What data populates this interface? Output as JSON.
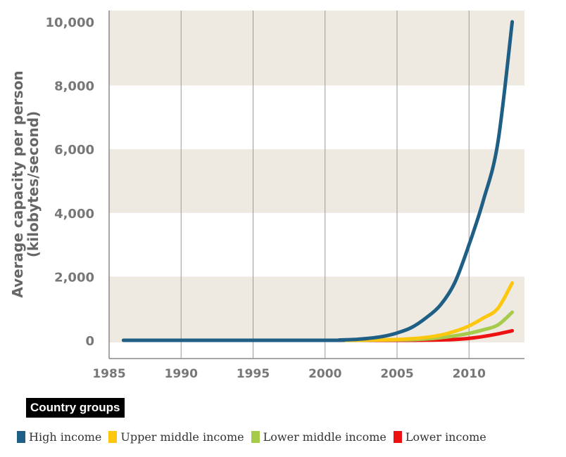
{
  "chart_data": {
    "type": "line",
    "ylabel": "Average capacity per person\n(kilobytes/second)",
    "xlim": [
      1985,
      2014
    ],
    "ylim": [
      0,
      10000
    ],
    "xticks": [
      1985,
      1990,
      1995,
      2000,
      2005,
      2010
    ],
    "xtick_labels": [
      "1985",
      "1990",
      "1995",
      "2000",
      "2005",
      "2010"
    ],
    "yticks": [
      0,
      2000,
      4000,
      6000,
      8000,
      10000
    ],
    "ytick_labels": [
      "0",
      "2,000",
      "4,000",
      "6,000",
      "8,000",
      "10,000"
    ],
    "grid": "vertical lines, alternating horizontal bands",
    "band_color": "#eeeae1",
    "legend_title": "Country groups",
    "legend_placement": "bottom",
    "x": [
      1986,
      2000,
      2001,
      2002,
      2003,
      2004,
      2005,
      2006,
      2007,
      2008,
      2009,
      2010,
      2011,
      2012,
      2013
    ],
    "series": [
      {
        "name": "High income",
        "color": "#1f5f86",
        "values": [
          0,
          0,
          10,
          25,
          60,
          120,
          230,
          400,
          700,
          1100,
          1800,
          3000,
          4400,
          6200,
          10000
        ]
      },
      {
        "name": "Upper middle income",
        "color": "#fcc70d",
        "values": [
          0,
          0,
          0,
          5,
          10,
          15,
          25,
          50,
          90,
          160,
          280,
          450,
          700,
          1000,
          1800
        ]
      },
      {
        "name": "Lower middle income",
        "color": "#a6cb4a",
        "values": [
          0,
          0,
          0,
          0,
          5,
          10,
          15,
          20,
          40,
          80,
          140,
          220,
          330,
          480,
          880
        ]
      },
      {
        "name": "Lower income",
        "color": "#ee1111",
        "values": [
          0,
          0,
          0,
          0,
          0,
          0,
          0,
          0,
          5,
          10,
          25,
          60,
          120,
          200,
          300
        ]
      }
    ]
  }
}
